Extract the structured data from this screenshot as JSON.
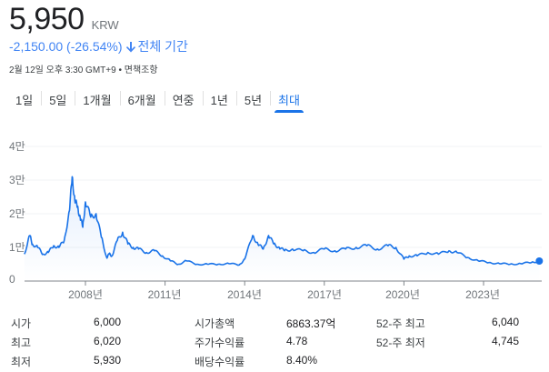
{
  "header": {
    "price": "5,950",
    "currency": "KRW",
    "change": "-2,150.00 (-26.54%)",
    "change_direction_icon": "arrow-down-icon",
    "period": "전체 기간",
    "timestamp": "2월 12일 오후 3:30 GMT+9",
    "separator": "•",
    "disclaimer": "면책조항",
    "accent_color": "#4285f4"
  },
  "tabs": [
    {
      "label": "1일",
      "active": false
    },
    {
      "label": "5일",
      "active": false
    },
    {
      "label": "1개월",
      "active": false
    },
    {
      "label": "6개월",
      "active": false
    },
    {
      "label": "연중",
      "active": false
    },
    {
      "label": "1년",
      "active": false
    },
    {
      "label": "5년",
      "active": false
    },
    {
      "label": "최대",
      "active": true
    }
  ],
  "chart_data": {
    "type": "line",
    "title": "",
    "xlabel": "",
    "ylabel": "",
    "ylim": [
      0,
      40000
    ],
    "y_ticks": [
      "0",
      "1만",
      "2만",
      "3만",
      "4만"
    ],
    "x_ticks": [
      "2008년",
      "2011년",
      "2014년",
      "2017년",
      "2020년",
      "2023년"
    ],
    "grid": true,
    "line_color": "#1a73e8",
    "series": [
      {
        "name": "KRW price",
        "x": [
          2005.7,
          2005.9,
          2006.0,
          2006.2,
          2006.4,
          2006.6,
          2006.8,
          2007.0,
          2007.2,
          2007.4,
          2007.5,
          2007.6,
          2007.7,
          2007.8,
          2007.9,
          2008.0,
          2008.2,
          2008.4,
          2008.6,
          2008.8,
          2008.9,
          2009.0,
          2009.2,
          2009.4,
          2009.6,
          2009.8,
          2010.0,
          2010.3,
          2010.6,
          2010.9,
          2011.2,
          2011.5,
          2011.8,
          2012.2,
          2012.6,
          2013.0,
          2013.4,
          2013.8,
          2014.0,
          2014.3,
          2014.5,
          2014.7,
          2014.9,
          2015.1,
          2015.3,
          2015.5,
          2015.8,
          2016.2,
          2016.6,
          2017.0,
          2017.4,
          2017.8,
          2018.2,
          2018.6,
          2019.0,
          2019.4,
          2019.7,
          2020.0,
          2020.2,
          2020.5,
          2020.9,
          2021.3,
          2021.7,
          2022.0,
          2022.4,
          2022.8,
          2023.2,
          2023.6,
          2024.0,
          2024.4,
          2024.8,
          2025.1
        ],
        "values": [
          8000,
          13500,
          11000,
          10000,
          8000,
          8500,
          10500,
          10000,
          12000,
          21000,
          31000,
          24000,
          22000,
          19000,
          16000,
          23500,
          19000,
          20000,
          13000,
          7000,
          8000,
          7500,
          12000,
          14500,
          11000,
          10000,
          9500,
          8500,
          9000,
          7500,
          6000,
          5000,
          6000,
          5000,
          5000,
          5000,
          5200,
          4800,
          6500,
          13500,
          11000,
          9500,
          13500,
          11000,
          10000,
          9000,
          9500,
          9000,
          8500,
          9500,
          9000,
          9500,
          10000,
          10500,
          9500,
          10500,
          10000,
          6500,
          7500,
          7500,
          8500,
          8000,
          9000,
          8500,
          7000,
          6000,
          5500,
          5200,
          5000,
          5200,
          5500,
          5950
        ]
      }
    ],
    "last_point_marker": true
  },
  "stats": {
    "col1": [
      {
        "label": "시가",
        "value": "6,000"
      },
      {
        "label": "최고",
        "value": "6,020"
      },
      {
        "label": "최저",
        "value": "5,930"
      }
    ],
    "col2": [
      {
        "label": "시가총액",
        "value": "6863.37억"
      },
      {
        "label": "주가수익률",
        "value": "4.78"
      },
      {
        "label": "배당수익률",
        "value": "8.40%"
      }
    ],
    "col3": [
      {
        "label": "52-주 최고",
        "value": "6,040"
      },
      {
        "label": "52-주 최저",
        "value": "4,745"
      }
    ]
  }
}
